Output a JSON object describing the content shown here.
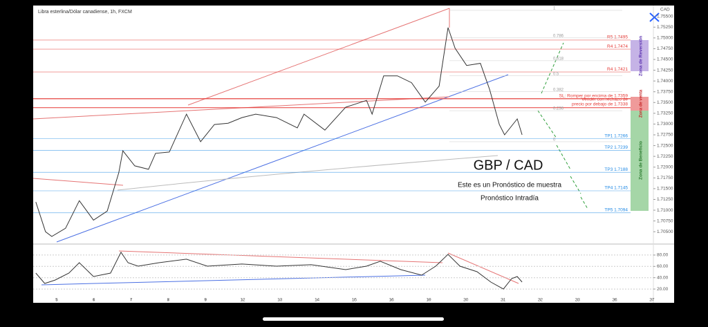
{
  "chart_data": [
    {
      "type": "line",
      "title": "Libra esterlina/Dólar canadiense, 1h, FXCM",
      "axis_label": "CAD",
      "x": [
        -0.56,
        -0.3,
        -0.13,
        0.24,
        0.61,
        0.99,
        1.36,
        1.67,
        1.78,
        2.1,
        2.47,
        2.66,
        3.03,
        3.49,
        3.87,
        4.24,
        4.61,
        4.98,
        5.35,
        5.91,
        6.47,
        6.65,
        7.21,
        7.77,
        8.33,
        8.48,
        8.79,
        9.16,
        9.54,
        9.91,
        10.28,
        10.52,
        10.71,
        11.02,
        11.39,
        11.64,
        11.9,
        12.04,
        12.38,
        12.51
      ],
      "series": [
        {
          "name": "GBP/CAD",
          "color": "#333333",
          "values": [
            1.7119,
            1.705,
            1.7039,
            1.7058,
            1.7122,
            1.7077,
            1.7098,
            1.7187,
            1.7238,
            1.7203,
            1.7195,
            1.7232,
            1.7235,
            1.7323,
            1.7259,
            1.7299,
            1.7302,
            1.7315,
            1.7323,
            1.7315,
            1.7291,
            1.7323,
            1.7286,
            1.7339,
            1.7355,
            1.7323,
            1.7412,
            1.7412,
            1.7396,
            1.7351,
            1.7388,
            1.7524,
            1.7476,
            1.7436,
            1.7441,
            1.738,
            1.7299,
            1.7275,
            1.7312,
            1.7275
          ]
        }
      ],
      "xlim": [
        -0.63,
        16.04
      ],
      "xticks": [
        {
          "value": 0,
          "label": "5"
        },
        {
          "value": 1,
          "label": "6"
        },
        {
          "value": 2,
          "label": "7"
        },
        {
          "value": 3,
          "label": "8"
        },
        {
          "value": 4,
          "label": "9"
        },
        {
          "value": 5,
          "label": "12"
        },
        {
          "value": 6,
          "label": "13"
        },
        {
          "value": 7,
          "label": "14"
        },
        {
          "value": 8,
          "label": "15"
        },
        {
          "value": 9,
          "label": "16"
        },
        {
          "value": 10,
          "label": "19"
        },
        {
          "value": 11,
          "label": "20"
        },
        {
          "value": 12,
          "label": "21"
        },
        {
          "value": 13,
          "label": "22"
        },
        {
          "value": 14,
          "label": "23"
        },
        {
          "value": 15,
          "label": "26"
        },
        {
          "value": 16,
          "label": "27"
        }
      ],
      "ylim": [
        1.7023,
        1.7572
      ],
      "yticks": [
        {
          "value": 1.705,
          "label": "1.70500"
        },
        {
          "value": 1.7075,
          "label": "1.70750"
        },
        {
          "value": 1.71,
          "label": "1.71000"
        },
        {
          "value": 1.7125,
          "label": "1.71250"
        },
        {
          "value": 1.715,
          "label": "1.71500"
        },
        {
          "value": 1.7175,
          "label": "1.71750"
        },
        {
          "value": 1.72,
          "label": "1.72000"
        },
        {
          "value": 1.7225,
          "label": "1.72250"
        },
        {
          "value": 1.725,
          "label": "1.72500"
        },
        {
          "value": 1.7275,
          "label": "1.72750"
        },
        {
          "value": 1.73,
          "label": "1.73000"
        },
        {
          "value": 1.7325,
          "label": "1.73250"
        },
        {
          "value": 1.735,
          "label": "1.73500"
        },
        {
          "value": 1.7375,
          "label": "1.73750"
        },
        {
          "value": 1.74,
          "label": "1.74000"
        },
        {
          "value": 1.7425,
          "label": "1.74250"
        },
        {
          "value": 1.745,
          "label": "1.74500"
        },
        {
          "value": 1.7475,
          "label": "1.74750"
        },
        {
          "value": 1.75,
          "label": "1.75000"
        },
        {
          "value": 1.7525,
          "label": "1.75250"
        },
        {
          "value": 1.755,
          "label": "1.75500"
        }
      ],
      "levels": [
        {
          "label": "R5 1.7495",
          "value": 1.7495,
          "color": "#e53935"
        },
        {
          "label": "R4 1.7474",
          "value": 1.7474,
          "color": "#e53935"
        },
        {
          "label": "R4 1.7421",
          "value": 1.7421,
          "color": "#e53935"
        },
        {
          "label": "SL: Romper por encima de 1.7359",
          "value": 1.7359,
          "color": "#e53935"
        },
        {
          "label": "TP1 1.7266",
          "value": 1.7266,
          "color": "#1e88e5"
        },
        {
          "label": "TP2 1.7239",
          "value": 1.7239,
          "color": "#1e88e5"
        },
        {
          "label": "TP3 1.7188",
          "value": 1.7188,
          "color": "#1e88e5"
        },
        {
          "label": "TP4 1.7145",
          "value": 1.7145,
          "color": "#1e88e5"
        },
        {
          "label": "TP5 1.7094",
          "value": 1.7094,
          "color": "#1e88e5"
        }
      ],
      "sell_level": {
        "lines": [
          "Vender con rechazo de",
          "precio por debajo de 1.7338"
        ],
        "value": 1.7338,
        "color": "#e53935"
      },
      "fib": [
        {
          "level": 1,
          "price": 1.7564
        },
        {
          "level": 0.786,
          "price": 1.75
        },
        {
          "level": 0.618,
          "price": 1.7447
        },
        {
          "level": 0.5,
          "price": 1.7412
        },
        {
          "level": 0.382,
          "price": 1.7375
        },
        {
          "level": 0.236,
          "price": 1.7331
        },
        {
          "level": 0,
          "price": 1.7259
        }
      ],
      "zones": [
        "Zona de Reversión",
        "Zona de venta",
        "Zona de Beneficio"
      ],
      "headline": "GBP / CAD",
      "note": "Este es un Pronóstico de muestra",
      "subnote": "Pronóstico Intradía"
    },
    {
      "type": "line",
      "x": [
        -0.56,
        -0.32,
        -0.04,
        0.33,
        0.61,
        0.99,
        1.45,
        1.73,
        1.92,
        2.19,
        2.75,
        3.49,
        4.05,
        4.98,
        5.91,
        6.84,
        7.77,
        8.33,
        8.7,
        9.25,
        9.81,
        10.19,
        10.52,
        10.84,
        11.3,
        11.67,
        12.01,
        12.23,
        12.38,
        12.51
      ],
      "series": [
        {
          "name": "RSI",
          "color": "#333333",
          "values": [
            48.2,
            29.8,
            35.9,
            48.2,
            66.5,
            42.1,
            48.2,
            84.9,
            66.5,
            60.4,
            66.5,
            72.7,
            60.4,
            64.1,
            60.4,
            62.9,
            54.3,
            60.4,
            69.0,
            54.3,
            44.5,
            60.4,
            81.2,
            60.4,
            50.6,
            32.3,
            20.0,
            38.4,
            42.1,
            32.3
          ]
        }
      ],
      "xlim": [
        -0.63,
        16.04
      ],
      "ylim": [
        3,
        97
      ],
      "yticks": [
        {
          "value": 20,
          "label": "20.00"
        },
        {
          "value": 40,
          "label": "40.00"
        },
        {
          "value": 60,
          "label": "60.00"
        },
        {
          "value": 80,
          "label": "80.00"
        }
      ]
    }
  ]
}
